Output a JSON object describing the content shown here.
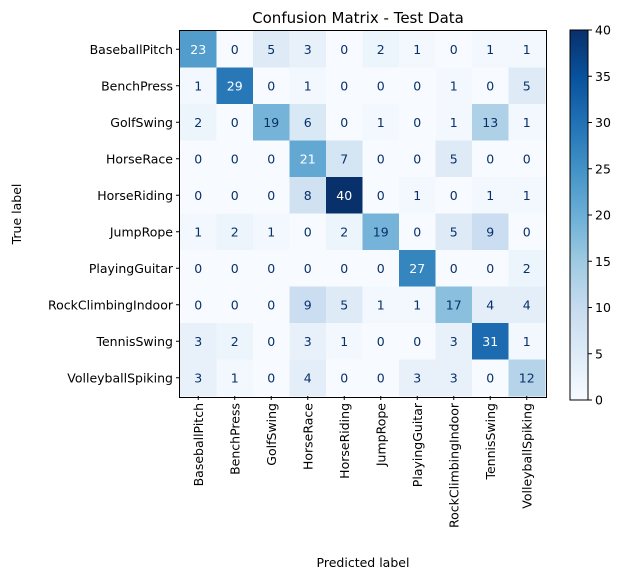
{
  "chart_data": {
    "type": "heatmap",
    "title": "Confusion Matrix - Test Data",
    "xlabel": "Predicted label",
    "ylabel": "True label",
    "labels": [
      "BaseballPitch",
      "BenchPress",
      "GolfSwing",
      "HorseRace",
      "HorseRiding",
      "JumpRope",
      "PlayingGuitar",
      "RockClimbingIndoor",
      "TennisSwing",
      "VolleyballSpiking"
    ],
    "matrix": [
      [
        23,
        0,
        5,
        3,
        0,
        2,
        1,
        0,
        1,
        1
      ],
      [
        1,
        29,
        0,
        1,
        0,
        0,
        0,
        1,
        0,
        5
      ],
      [
        2,
        0,
        19,
        6,
        0,
        1,
        0,
        1,
        13,
        1
      ],
      [
        0,
        0,
        0,
        21,
        7,
        0,
        0,
        5,
        0,
        0
      ],
      [
        0,
        0,
        0,
        8,
        40,
        0,
        1,
        0,
        1,
        1
      ],
      [
        1,
        2,
        1,
        0,
        2,
        19,
        0,
        5,
        9,
        0
      ],
      [
        0,
        0,
        0,
        0,
        0,
        0,
        27,
        0,
        0,
        2
      ],
      [
        0,
        0,
        0,
        9,
        5,
        1,
        1,
        17,
        4,
        4
      ],
      [
        3,
        2,
        0,
        3,
        1,
        0,
        0,
        3,
        31,
        1
      ],
      [
        3,
        1,
        0,
        4,
        0,
        0,
        3,
        3,
        0,
        12
      ]
    ],
    "colormap": "Blues",
    "vmin": 0,
    "vmax": 40,
    "colorbar_ticks": [
      0,
      5,
      10,
      15,
      20,
      25,
      30,
      35,
      40
    ]
  }
}
